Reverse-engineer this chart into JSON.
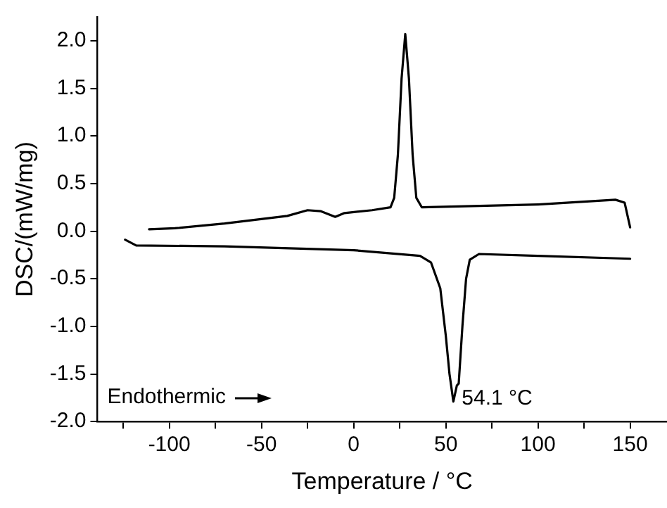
{
  "chart_data": {
    "type": "line",
    "xlabel": "Temperature / °C",
    "ylabel": "DSC/(mW/mg)",
    "xlim": [
      -139,
      170
    ],
    "ylim": [
      -2.0,
      2.25
    ],
    "xticks": [
      -100,
      -50,
      0,
      50,
      100,
      150,
      {
        "value": -125,
        "label": null
      },
      {
        "value": -75,
        "label": null
      },
      {
        "value": -25,
        "label": null
      },
      {
        "value": 25,
        "label": null
      },
      {
        "value": 75,
        "label": null
      },
      {
        "value": 125,
        "label": null
      }
    ],
    "yticks": [
      {
        "value": -2,
        "label": "-2.0"
      },
      {
        "value": -1.5,
        "label": "-1.5"
      },
      {
        "value": -1,
        "label": "-1.0"
      },
      {
        "value": -0.5,
        "label": "-0.5"
      },
      {
        "value": 0,
        "label": "0.0"
      },
      {
        "value": 0.5,
        "label": "0.5"
      },
      {
        "value": 1,
        "label": "1.0"
      },
      {
        "value": 1.5,
        "label": "1.5"
      },
      {
        "value": 2,
        "label": "2.0"
      }
    ],
    "grid": false,
    "legend": false,
    "marker": "none",
    "line_style": "solid",
    "series": [
      {
        "color": "#000000",
        "x": [
          -111,
          -97,
          -70,
          -36,
          -25,
          -18,
          -10,
          -5,
          10,
          20,
          22,
          24,
          26,
          28,
          30,
          32,
          34,
          37,
          100,
          142,
          147,
          150
        ],
        "values": [
          0.02,
          0.03,
          0.08,
          0.16,
          0.22,
          0.21,
          0.15,
          0.19,
          0.22,
          0.25,
          0.35,
          0.8,
          1.6,
          2.07,
          1.6,
          0.8,
          0.35,
          0.25,
          0.28,
          0.33,
          0.3,
          0.04
        ]
      },
      {
        "color": "#000000",
        "x": [
          -124,
          -118,
          -70,
          0,
          36,
          42,
          47,
          50,
          52,
          54.1,
          56,
          57,
          59,
          61,
          63,
          68,
          100,
          150
        ],
        "values": [
          -0.09,
          -0.15,
          -0.16,
          -0.2,
          -0.26,
          -0.33,
          -0.6,
          -1.1,
          -1.5,
          -1.79,
          -1.62,
          -1.6,
          -1.0,
          -0.5,
          -0.3,
          -0.24,
          -0.26,
          -0.29
        ]
      }
    ],
    "annotations": [
      "Endothermic",
      {
        "text": "54.1 °C",
        "x": 54.1,
        "y": -1.79
      }
    ]
  }
}
